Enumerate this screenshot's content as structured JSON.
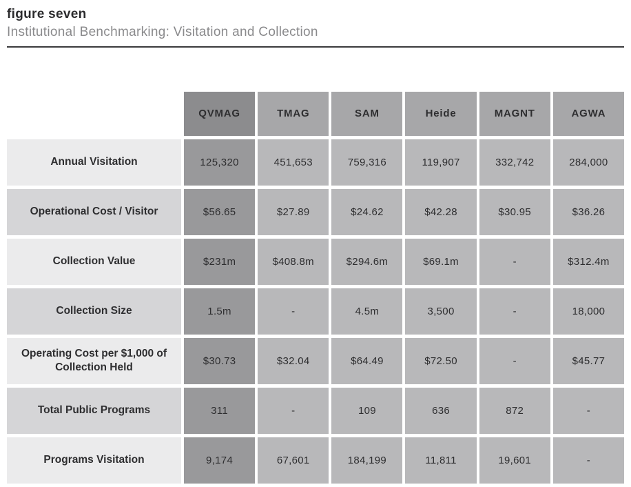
{
  "figure": {
    "label": "figure seven",
    "title": "Institutional Benchmarking: Visitation and Collection"
  },
  "chart_data": {
    "type": "table",
    "columns": [
      "QVMAG",
      "TMAG",
      "SAM",
      "Heide",
      "MAGNT",
      "AGWA"
    ],
    "highlight_column": "QVMAG",
    "rows": [
      {
        "label": "Annual Visitation",
        "values": [
          "125,320",
          "451,653",
          "759,316",
          "119,907",
          "332,742",
          "284,000"
        ]
      },
      {
        "label": "Operational Cost / Visitor",
        "values": [
          "$56.65",
          "$27.89",
          "$24.62",
          "$42.28",
          "$30.95",
          "$36.26"
        ]
      },
      {
        "label": "Collection Value",
        "values": [
          "$231m",
          "$408.8m",
          "$294.6m",
          "$69.1m",
          "-",
          "$312.4m"
        ]
      },
      {
        "label": "Collection Size",
        "values": [
          "1.5m",
          "-",
          "4.5m",
          "3,500",
          "-",
          "18,000"
        ]
      },
      {
        "label": "Operating Cost per $1,000 of Collection Held",
        "values": [
          "$30.73",
          "$32.04",
          "$64.49",
          "$72.50",
          "-",
          "$45.77"
        ]
      },
      {
        "label": "Total Public Programs",
        "values": [
          "311",
          "-",
          "109",
          "636",
          "872",
          "-"
        ]
      },
      {
        "label": "Programs Visitation",
        "values": [
          "9,174",
          "67,601",
          "184,199",
          "11,811",
          "19,601",
          "-"
        ]
      }
    ]
  },
  "colors": {
    "header_highlight": "#8c8c8e",
    "header": "#a7a7a9",
    "cell_highlight": "#99999b",
    "cell": "#b8b8ba",
    "label_light": "#ebebec",
    "label_dark": "#d5d5d7",
    "text": "#2e2e30",
    "rule": "#3a3a3c"
  }
}
